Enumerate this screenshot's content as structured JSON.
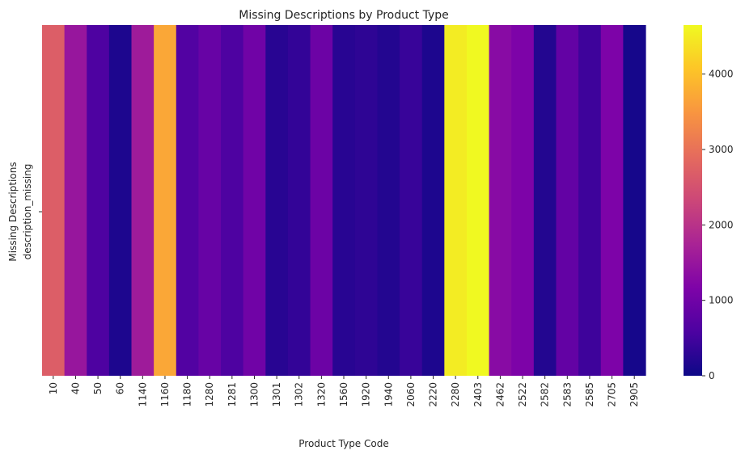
{
  "chart_data": {
    "type": "heatmap",
    "title": "Missing Descriptions by Product Type",
    "xlabel": "Product Type Code",
    "ylabel": "Missing Descriptions",
    "row_labels": [
      "description_missing"
    ],
    "categories": [
      "10",
      "40",
      "50",
      "60",
      "1140",
      "1160",
      "1180",
      "1280",
      "1281",
      "1300",
      "1301",
      "1302",
      "1320",
      "1560",
      "1920",
      "1940",
      "2060",
      "2220",
      "2280",
      "2403",
      "2462",
      "2522",
      "2582",
      "2583",
      "2585",
      "2705",
      "2905"
    ],
    "values": [
      2700,
      1500,
      600,
      150,
      1600,
      3700,
      650,
      900,
      600,
      1000,
      250,
      350,
      950,
      250,
      300,
      200,
      400,
      150,
      4500,
      4650,
      1300,
      1150,
      200,
      850,
      450,
      1150,
      80
    ],
    "colorscale": "plasma",
    "vmin": 0,
    "vmax": 4650,
    "colorbar_ticks": [
      "0",
      "1000",
      "2000",
      "3000",
      "4000"
    ],
    "colorbar_tick_values": [
      0,
      1000,
      2000,
      3000,
      4000
    ]
  }
}
